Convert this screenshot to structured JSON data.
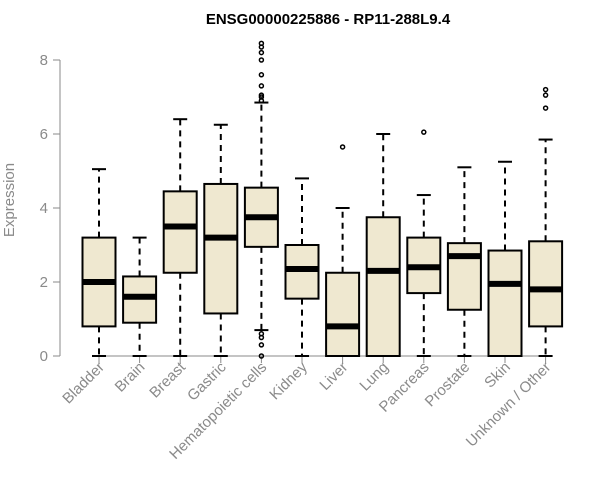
{
  "chart_data": {
    "type": "box",
    "title": "ENSG00000225886 - RP11-288L9.4",
    "xlabel": "",
    "ylabel": "Expression",
    "ylim": [
      0,
      8.5
    ],
    "yticks": [
      0,
      2,
      4,
      6,
      8
    ],
    "box_fill": "#efe8d0",
    "categories": [
      "Bladder",
      "Brain",
      "Breast",
      "Gastric",
      "Hematopoietic cells",
      "Kidney",
      "Liver",
      "Lung",
      "Pancreas",
      "Prostate",
      "Skin",
      "Unknown / Other"
    ],
    "boxes": [
      {
        "min": 0,
        "q1": 0.8,
        "median": 2.0,
        "q3": 3.2,
        "max": 5.05,
        "outliers": []
      },
      {
        "min": 0,
        "q1": 0.9,
        "median": 1.6,
        "q3": 2.15,
        "max": 3.2,
        "outliers": []
      },
      {
        "min": 0,
        "q1": 2.25,
        "median": 3.5,
        "q3": 4.45,
        "max": 6.4,
        "outliers": []
      },
      {
        "min": 0,
        "q1": 1.15,
        "median": 3.2,
        "q3": 4.65,
        "max": 6.25,
        "outliers": []
      },
      {
        "min": 0.7,
        "q1": 2.95,
        "median": 3.75,
        "q3": 4.55,
        "max": 6.85,
        "outliers": [
          0,
          0.3,
          0.5,
          0.6,
          6.9,
          7.0,
          7.05,
          7.3,
          7.6,
          8.0,
          8.2,
          8.35,
          8.45
        ]
      },
      {
        "min": 0,
        "q1": 1.55,
        "median": 2.35,
        "q3": 3.0,
        "max": 4.8,
        "outliers": []
      },
      {
        "min": 0,
        "q1": 0,
        "median": 0.8,
        "q3": 2.25,
        "max": 4.0,
        "outliers": [
          5.65
        ]
      },
      {
        "min": 0,
        "q1": 0,
        "median": 2.3,
        "q3": 3.75,
        "max": 6.0,
        "outliers": []
      },
      {
        "min": 0,
        "q1": 1.7,
        "median": 2.4,
        "q3": 3.2,
        "max": 4.35,
        "outliers": [
          6.05
        ]
      },
      {
        "min": 0,
        "q1": 1.25,
        "median": 2.7,
        "q3": 3.05,
        "max": 5.1,
        "outliers": []
      },
      {
        "min": 0,
        "q1": 0,
        "median": 1.95,
        "q3": 2.85,
        "max": 5.25,
        "outliers": []
      },
      {
        "min": 0,
        "q1": 0.8,
        "median": 1.8,
        "q3": 3.1,
        "max": 5.85,
        "outliers": [
          6.7,
          7.05,
          7.2
        ]
      }
    ]
  }
}
